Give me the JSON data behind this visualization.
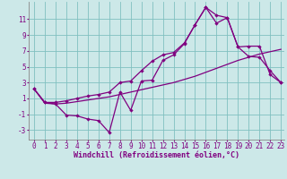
{
  "xlabel": "Windchill (Refroidissement éolien,°C)",
  "background_color": "#cce8e8",
  "line_color": "#800080",
  "grid_color": "#80c0c0",
  "xlim": [
    -0.5,
    23.3
  ],
  "ylim": [
    -4.2,
    13.2
  ],
  "xticks": [
    0,
    1,
    2,
    3,
    4,
    5,
    6,
    7,
    8,
    9,
    10,
    11,
    12,
    13,
    14,
    15,
    16,
    17,
    18,
    19,
    20,
    21,
    22,
    23
  ],
  "yticks": [
    -3,
    -1,
    1,
    3,
    5,
    7,
    9,
    11
  ],
  "line1_x": [
    0,
    1,
    2,
    3,
    4,
    5,
    6,
    7,
    8,
    9,
    10,
    11,
    12,
    13,
    14,
    15,
    16,
    17,
    18,
    19,
    20,
    21,
    22,
    23
  ],
  "line1_y": [
    2.2,
    0.5,
    0.3,
    -1.1,
    -1.2,
    -1.6,
    -1.8,
    -3.3,
    1.8,
    -0.5,
    3.2,
    3.3,
    5.8,
    6.5,
    7.9,
    10.3,
    12.5,
    10.5,
    11.2,
    7.5,
    7.6,
    7.6,
    4.0,
    3.0
  ],
  "line2_x": [
    0,
    1,
    2,
    3,
    4,
    5,
    6,
    7,
    8,
    9,
    10,
    11,
    12,
    13,
    14,
    15,
    16,
    17,
    18,
    19,
    20,
    21,
    22,
    23
  ],
  "line2_y": [
    2.2,
    0.4,
    0.3,
    0.4,
    0.6,
    0.8,
    1.0,
    1.2,
    1.5,
    1.8,
    2.1,
    2.4,
    2.7,
    3.0,
    3.4,
    3.8,
    4.3,
    4.8,
    5.3,
    5.8,
    6.2,
    6.6,
    6.9,
    7.2
  ],
  "line3_x": [
    0,
    1,
    2,
    3,
    4,
    5,
    6,
    7,
    8,
    9,
    10,
    11,
    12,
    13,
    14,
    15,
    16,
    17,
    18,
    19,
    20,
    21,
    22,
    23
  ],
  "line3_y": [
    2.2,
    0.5,
    0.5,
    0.7,
    1.0,
    1.3,
    1.5,
    1.8,
    3.0,
    3.2,
    4.5,
    5.7,
    6.5,
    6.8,
    8.0,
    10.3,
    12.5,
    11.5,
    11.2,
    7.5,
    6.3,
    6.2,
    4.5,
    3.0
  ],
  "tick_fontsize": 5.5,
  "label_fontsize": 6.0
}
